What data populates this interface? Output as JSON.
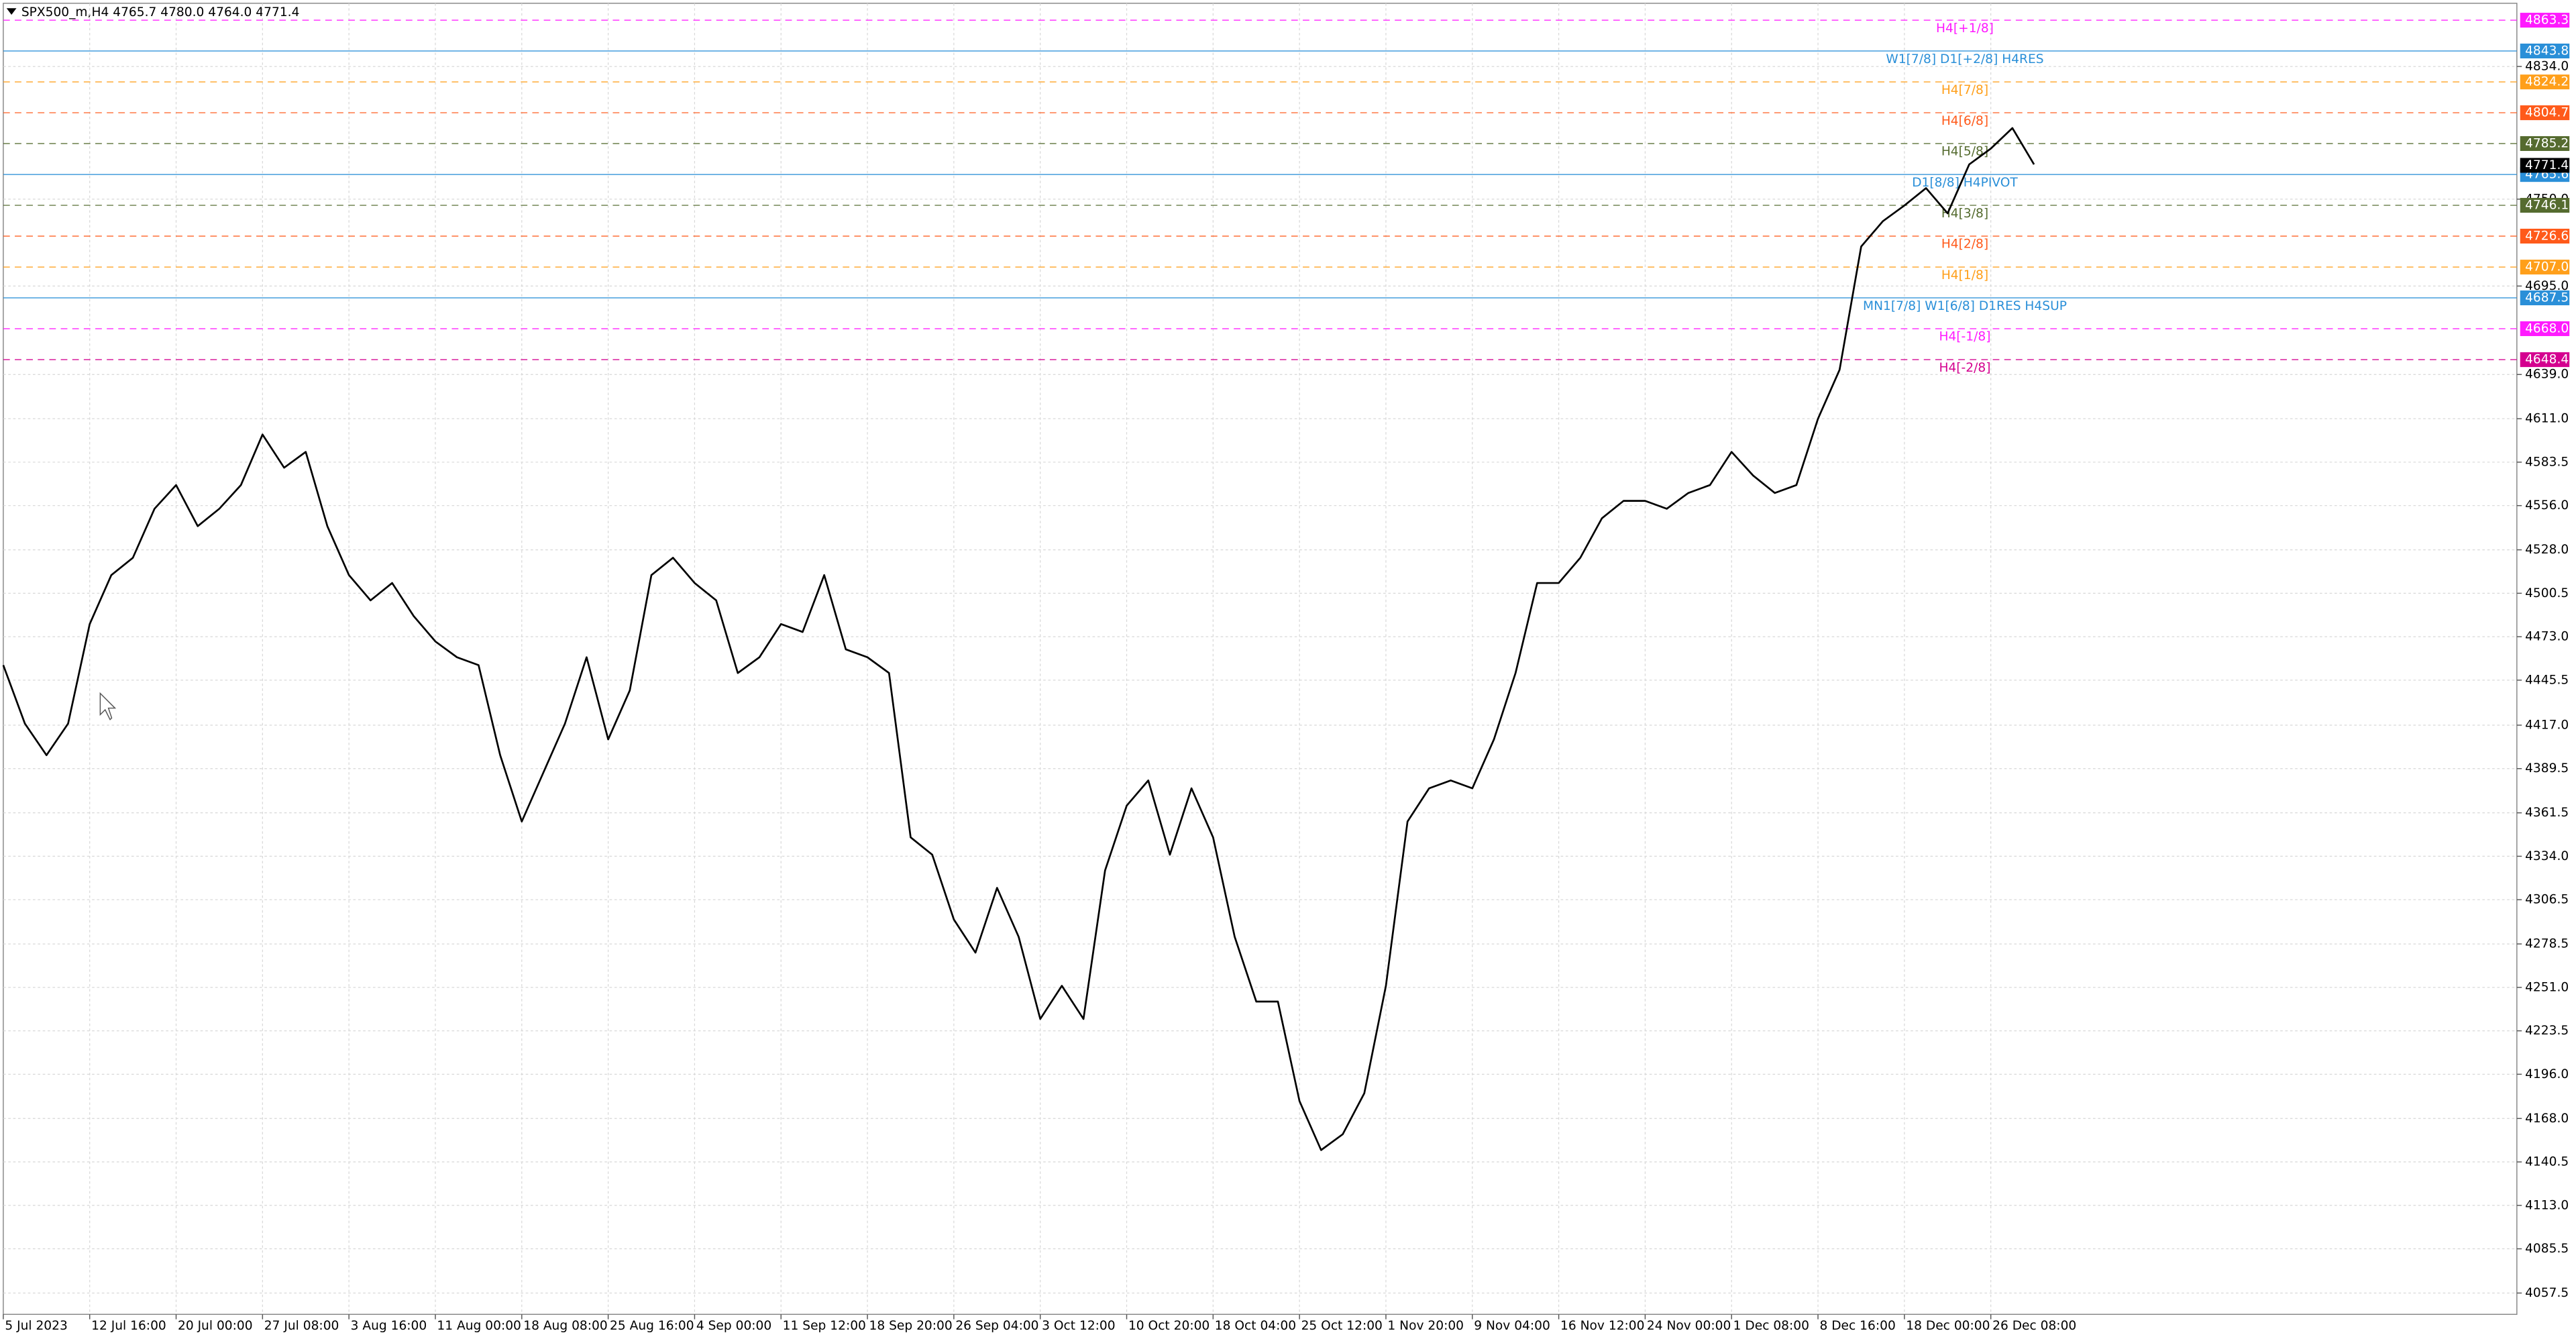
{
  "chart_data": {
    "type": "line",
    "title": "SPX500_m,H4  4765.7 4780.0 4764.0 4771.4",
    "color": "#000000",
    "categories": [
      "5 Jul 2023",
      null,
      null,
      null,
      "12 Jul 16:00",
      null,
      null,
      null,
      "20 Jul 00:00",
      null,
      null,
      null,
      "27 Jul 08:00",
      null,
      null,
      null,
      "3 Aug 16:00",
      null,
      null,
      null,
      "11 Aug 00:00",
      null,
      null,
      null,
      "18 Aug 08:00",
      null,
      null,
      null,
      "25 Aug 16:00",
      null,
      null,
      null,
      "4 Sep 00:00",
      null,
      null,
      null,
      "11 Sep 12:00",
      null,
      null,
      null,
      "18 Sep 20:00",
      null,
      null,
      null,
      "26 Sep 04:00",
      null,
      null,
      null,
      "3 Oct 12:00",
      null,
      null,
      null,
      "10 Oct 20:00",
      null,
      null,
      null,
      "18 Oct 04:00",
      null,
      null,
      null,
      "25 Oct 12:00",
      null,
      null,
      null,
      "1 Nov 20:00",
      null,
      null,
      null,
      "9 Nov 04:00",
      null,
      null,
      null,
      "16 Nov 12:00",
      null,
      null,
      null,
      "24 Nov 00:00",
      null,
      null,
      null,
      "1 Dec 08:00",
      null,
      null,
      null,
      "8 Dec 16:00",
      null,
      null,
      null,
      "18 Dec 00:00",
      null,
      null,
      null,
      "26 Dec 08:00",
      null,
      null
    ],
    "values": [
      4455,
      4418,
      4398,
      4418,
      4481,
      4512,
      4523,
      4554,
      4569,
      4543,
      4554,
      4569,
      4601,
      4580,
      4590,
      4543,
      4512,
      4496,
      4507,
      4486,
      4470,
      4460,
      4455,
      4398,
      4356,
      4387,
      4418,
      4460,
      4408,
      4439,
      4512,
      4523,
      4507,
      4496,
      4450,
      4460,
      4481,
      4476,
      4512,
      4465,
      4460,
      4450,
      4346,
      4335,
      4294,
      4273,
      4314,
      4283,
      4231,
      4252,
      4231,
      4325,
      4366,
      4382,
      4335,
      4377,
      4346,
      4283,
      4242,
      4242,
      4179,
      4148,
      4158,
      4184,
      4252,
      4356,
      4377,
      4382,
      4377,
      4408,
      4450,
      4507,
      4507,
      4523,
      4548,
      4559,
      4559,
      4554,
      4564,
      4569,
      4590,
      4575,
      4564,
      4569,
      4611,
      4642,
      4720,
      4736,
      4746,
      4757,
      4741,
      4772,
      4782,
      4795,
      4772
    ],
    "ylim": [
      4044,
      4874
    ],
    "yticks": [
      4057.5,
      4085.5,
      {
        "value": 4113,
        "label": "4113.0"
      },
      4140.5,
      {
        "value": 4168,
        "label": "4168.0"
      },
      {
        "value": 4196,
        "label": "4196.0"
      },
      4223.5,
      {
        "value": 4251,
        "label": "4251.0"
      },
      4278.5,
      4306.5,
      {
        "value": 4334,
        "label": "4334.0"
      },
      4361.5,
      4389.5,
      {
        "value": 4417,
        "label": "4417.0"
      },
      4445.5,
      {
        "value": 4473,
        "label": "4473.0"
      },
      4500.5,
      {
        "value": 4528,
        "label": "4528.0"
      },
      {
        "value": 4556,
        "label": "4556.0"
      },
      4583.5,
      {
        "value": 4611,
        "label": "4611.0"
      },
      {
        "value": 4639,
        "label": "4639.0"
      },
      {
        "value": 4695,
        "label": "4695.0"
      },
      {
        "value": 4750,
        "label": "4750.0"
      },
      {
        "value": 4834,
        "label": "4834.0"
      }
    ],
    "grid": true,
    "levels": {
      "names": [
        "H4[+1/8]",
        "W1[7/8] D1[+2/8] H4RES",
        "H4[7/8]",
        "H4[6/8]",
        "H4[5/8]",
        "D1[8/8] H4PIVOT",
        "H4[3/8]",
        "H4[2/8]",
        "H4[1/8]",
        "MN1[7/8] W1[6/8] D1RES H4SUP",
        "H4[-1/8]",
        "H4[-2/8]"
      ],
      "values": [
        4863.3,
        4843.8,
        4824.2,
        4804.7,
        4785.2,
        4765.6,
        4746.1,
        4726.6,
        4707,
        4687.5,
        4668,
        4648.4
      ],
      "value_labels": [
        "4863.3",
        "4843.8",
        "4824.2",
        "4804.7",
        "4785.2",
        "4765.6",
        "4746.1",
        "4726.6",
        "4707.0",
        "4687.5",
        "4668.0",
        "4648.4"
      ],
      "colors": [
        "#ff1aff",
        "#2a8fd8",
        "#ff9f1a",
        "#ff5a1a",
        "#556b2f",
        "#2a8fd8",
        "#556b2f",
        "#ff5a1a",
        "#ff9f1a",
        "#2a8fd8",
        "#ff1aff",
        "#d4008f"
      ]
    },
    "last_price": 4771.4
  }
}
